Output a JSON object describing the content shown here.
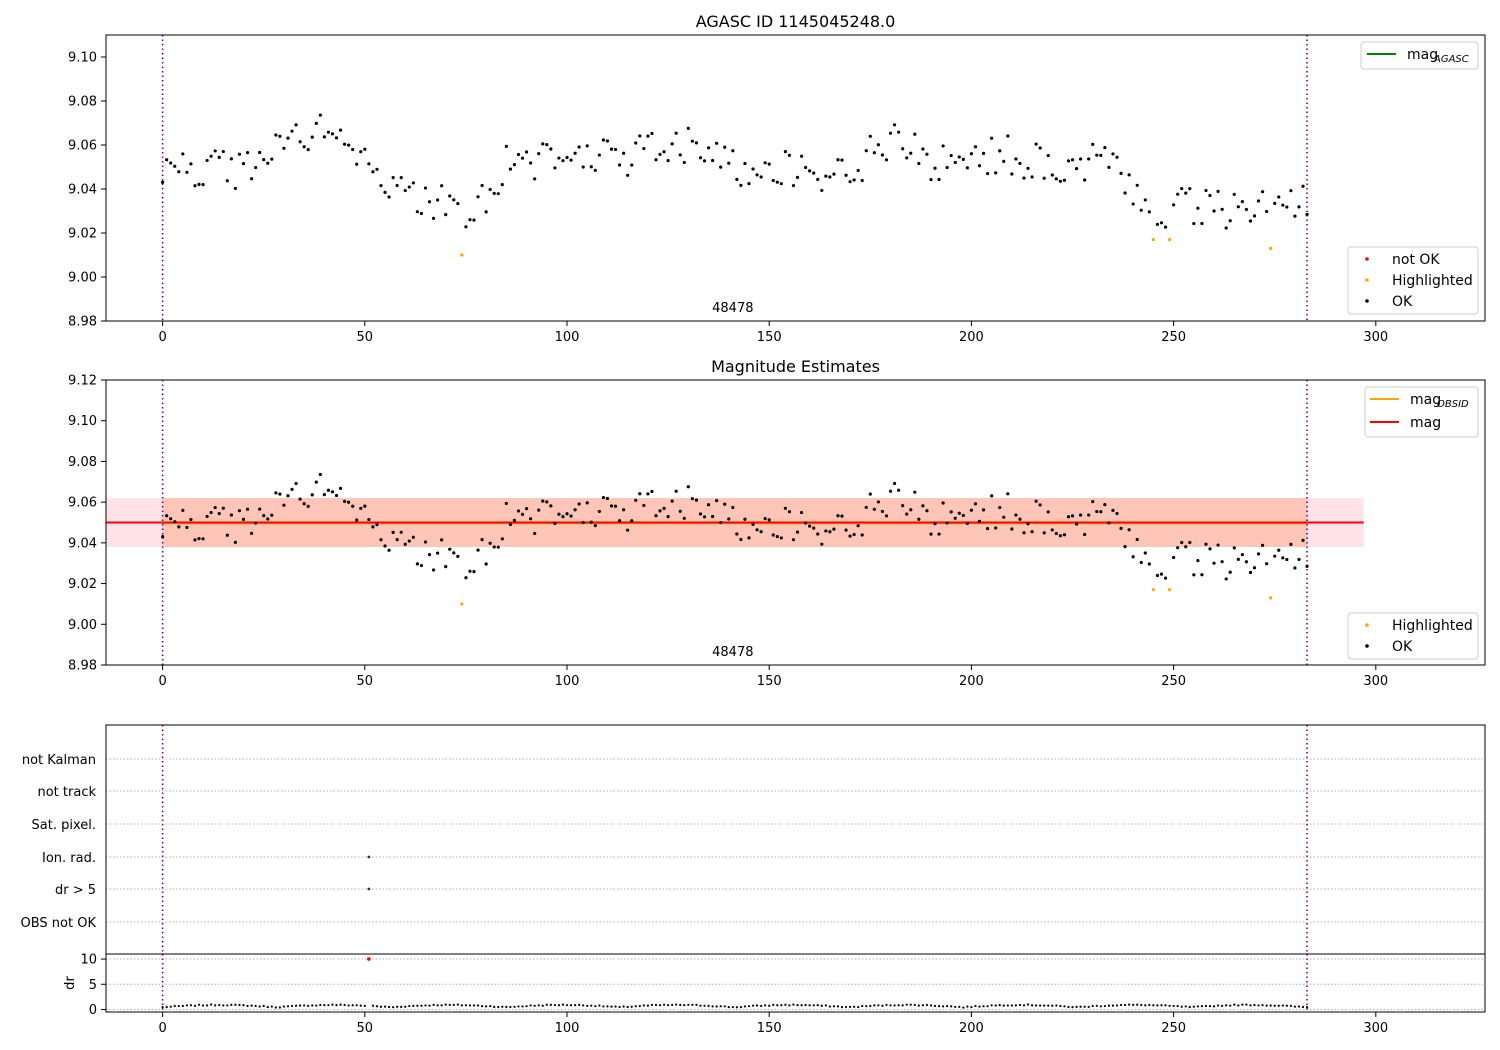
{
  "chart_data": [
    {
      "type": "scatter",
      "title": "AGASC ID 1145045248.0",
      "xlim": [
        -14,
        327
      ],
      "ylim": [
        8.98,
        9.11
      ],
      "xticks": [
        0,
        50,
        100,
        150,
        200,
        250,
        300
      ],
      "yticks": [
        "8.98",
        "9.00",
        "9.02",
        "9.04",
        "9.06",
        "9.08",
        "9.10"
      ],
      "annotation": {
        "text": "48478",
        "x": 141
      },
      "vlines": [
        0,
        283
      ],
      "legend_lines": [
        {
          "label": "mag",
          "sub": "AGASC",
          "color": "#008000"
        }
      ],
      "legend_markers": [
        {
          "label": "not OK",
          "color": "#ff0000"
        },
        {
          "label": "Highlighted",
          "color": "#ffa500"
        },
        {
          "label": "OK",
          "color": "#000000"
        }
      ],
      "series": [
        {
          "name": "Highlighted",
          "color": "#ffa500",
          "x": [
            74,
            245,
            249,
            274
          ],
          "y": [
            9.01,
            9.017,
            9.017,
            9.013
          ]
        }
      ]
    },
    {
      "type": "scatter",
      "title": "Magnitude Estimates",
      "xlim": [
        -14,
        327
      ],
      "ylim": [
        8.98,
        9.12
      ],
      "xticks": [
        0,
        50,
        100,
        150,
        200,
        250,
        300
      ],
      "yticks": [
        "8.98",
        "9.00",
        "9.02",
        "9.04",
        "9.06",
        "9.08",
        "9.10",
        "9.12"
      ],
      "annotation": {
        "text": "48478",
        "x": 141
      },
      "vlines": [
        0,
        283
      ],
      "mean_mag": 9.05,
      "band_outer": {
        "x": [
          -14,
          297
        ],
        "y": [
          9.038,
          9.062
        ],
        "color": "#ffc0cb"
      },
      "band_inner": {
        "x": [
          0,
          283
        ],
        "y": [
          9.038,
          9.062
        ],
        "color": "#ffa07a"
      },
      "legend_lines": [
        {
          "label": "mag",
          "sub": "OBSID",
          "color": "#ffa500"
        },
        {
          "label": "mag",
          "sub": "",
          "color": "#ff0000"
        }
      ],
      "legend_markers": [
        {
          "label": "Highlighted",
          "color": "#ffa500"
        },
        {
          "label": "OK",
          "color": "#000000"
        }
      ],
      "series": [
        {
          "name": "Highlighted",
          "color": "#ffa500",
          "x": [
            74,
            245,
            249,
            274
          ],
          "y": [
            9.01,
            9.017,
            9.017,
            9.013
          ]
        }
      ]
    },
    {
      "type": "scatter",
      "xlim": [
        -14,
        327
      ],
      "xticks": [
        0,
        50,
        100,
        150,
        200,
        250,
        300
      ],
      "flag_labels": [
        "not Kalman",
        "not track",
        "Sat. pixel.",
        "Ion. rad.",
        "dr > 5",
        "OBS not OK"
      ],
      "flag_points": [
        {
          "flag": "Ion. rad.",
          "x": 51
        },
        {
          "flag": "dr > 5",
          "x": 51
        }
      ],
      "vlines": [
        0,
        283
      ]
    },
    {
      "type": "scatter",
      "ylabel": "dr",
      "xlim": [
        -14,
        327
      ],
      "ylim": [
        -0.5,
        11
      ],
      "yticks": [
        "0",
        "5",
        "10"
      ],
      "xticks": [
        0,
        50,
        100,
        150,
        200,
        250,
        300
      ],
      "vlines": [
        0,
        283
      ],
      "outlier": {
        "x": 51,
        "y": 10.0,
        "color": "#ff0000"
      }
    }
  ]
}
